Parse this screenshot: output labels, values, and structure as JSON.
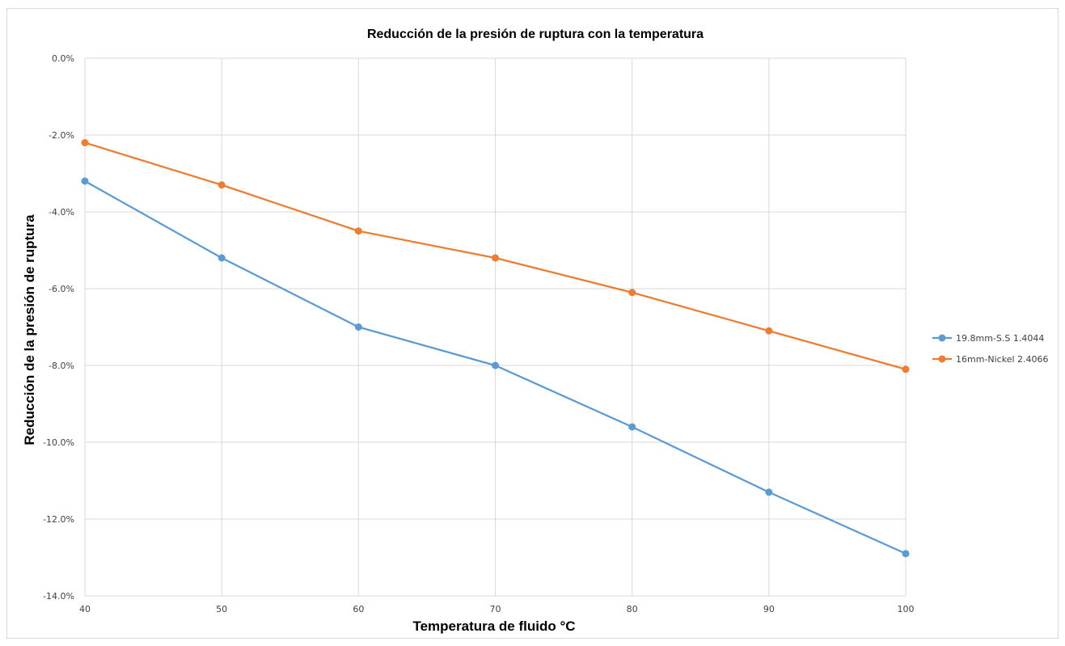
{
  "chart_data": {
    "type": "line",
    "title": "Reducción de la presión de ruptura con la temperatura",
    "xlabel": "Temperatura de fluido °C",
    "ylabel": "Reducción de la presión de ruptura",
    "x": [
      40,
      50,
      60,
      70,
      80,
      90,
      100
    ],
    "x_tick_labels": [
      "40",
      "50",
      "60",
      "70",
      "80",
      "90",
      "100"
    ],
    "xlim": [
      40,
      100
    ],
    "ylim": [
      -14.0,
      0.0
    ],
    "y_ticks": [
      0.0,
      -2.0,
      -4.0,
      -6.0,
      -8.0,
      -10.0,
      -12.0,
      -14.0
    ],
    "y_tick_labels": [
      "0.0%",
      "-2.0%",
      "-4.0%",
      "-6.0%",
      "-8.0%",
      "-10.0%",
      "-12.0%",
      "-14.0%"
    ],
    "y_unit": "%",
    "grid": true,
    "legend_position": "right",
    "series": [
      {
        "name": "19.8mm-S.S 1.4044",
        "color": "#5b9bd5",
        "values": [
          -3.2,
          -5.2,
          -7.0,
          -8.0,
          -9.6,
          -11.3,
          -12.9
        ]
      },
      {
        "name": "16mm-Nickel 2.4066",
        "color": "#ed7d31",
        "values": [
          -2.2,
          -3.3,
          -4.5,
          -5.2,
          -6.1,
          -7.1,
          -8.1
        ]
      }
    ]
  }
}
